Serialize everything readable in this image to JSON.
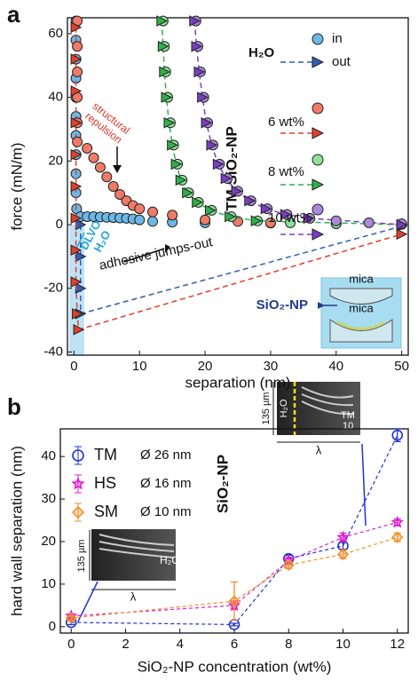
{
  "chart_data": [
    {
      "type": "scatter",
      "panel_label": "a",
      "xlabel": "separation (nm)",
      "ylabel": "force (mN/m)",
      "xlim": [
        -1,
        51
      ],
      "ylim": [
        -41,
        65
      ],
      "xticks": [
        0,
        10,
        20,
        30,
        40,
        50
      ],
      "yticks": [
        -40,
        -20,
        0,
        20,
        40,
        60
      ],
      "legend_in": "in",
      "legend_out": "out",
      "legend_group": "TM SiO₂-NP",
      "annotations": {
        "structural_repulsion": [
          "structural",
          "repulsion"
        ],
        "dlvo": [
          "DLVO",
          "H₂O"
        ],
        "jumps": "adhesive jumps-out",
        "particle": "SiO₂-NP",
        "mica": "mica"
      },
      "series": [
        {
          "name": "H₂O",
          "color": "#6cb8e6",
          "out_color": "#2f5fb5",
          "in_x": [
            0.3,
            0.3,
            0.3,
            0.3,
            0.3,
            0.3,
            0.3,
            0.3,
            0.3,
            0.3,
            0.4,
            1,
            2,
            3,
            4,
            5,
            6,
            7,
            8,
            9,
            10,
            12,
            15,
            20,
            30,
            40,
            50
          ],
          "in_y": [
            64,
            58,
            52,
            46,
            40,
            34,
            28,
            22,
            16,
            10,
            5,
            2.5,
            2.5,
            2.5,
            2.4,
            2.3,
            2.2,
            2.1,
            2,
            1.8,
            1.5,
            1,
            0.8,
            0.6,
            0.5,
            0.3,
            0.2
          ],
          "out_x": [
            1,
            1,
            1,
            1,
            50
          ],
          "out_y": [
            0,
            -10,
            -20,
            -28,
            -0.5
          ]
        },
        {
          "name": "6 wt%",
          "color": "#f07a68",
          "out_color": "#e0402e",
          "in_x": [
            0.5,
            0.5,
            0.5,
            0.5,
            0.5,
            0.5,
            2,
            3,
            4,
            5,
            6,
            7,
            8,
            9,
            10,
            12,
            15,
            20,
            25,
            30,
            40,
            50
          ],
          "in_y": [
            64,
            56,
            48,
            40,
            32,
            26,
            24,
            21,
            18,
            15,
            12,
            9.5,
            7.5,
            6,
            5,
            4,
            3,
            1.5,
            1,
            0.6,
            0.3,
            0.1
          ],
          "out_x": [
            0.3,
            0.3,
            0.3,
            0.3,
            0.3,
            0.3,
            0.3,
            0.3,
            0.3,
            0.5,
            0.7,
            50
          ],
          "out_y": [
            62,
            52,
            42,
            32,
            22,
            12,
            2,
            -8,
            -18,
            -28,
            -33,
            -3
          ]
        },
        {
          "name": "8 wt%",
          "color": "#8fe09a",
          "out_color": "#2fb04a",
          "in_x": [
            13.6,
            13.8,
            14,
            14.3,
            14.7,
            15.2,
            15.8,
            16.5,
            17.5,
            19,
            21,
            24,
            28,
            33,
            40,
            50
          ],
          "in_y": [
            64,
            56,
            48,
            40,
            32,
            25,
            19,
            14,
            10,
            7,
            4.5,
            2.5,
            1.2,
            0.6,
            0.3,
            0.1
          ],
          "out_x": [
            13.4,
            13.6,
            13.8,
            14.1,
            14.5,
            15,
            15.6,
            16.3,
            17.3,
            18.8,
            20.8,
            23.8,
            27.8,
            50
          ],
          "out_y": [
            64,
            56,
            48,
            40,
            32,
            25,
            19,
            14,
            10,
            7,
            4.5,
            2.5,
            1.2,
            0
          ]
        },
        {
          "name": "10 wt%",
          "color": "#a98bd9",
          "out_color": "#7a3fc0",
          "in_x": [
            18.6,
            18.9,
            19.3,
            19.8,
            20.4,
            21.2,
            22.2,
            23.4,
            25,
            27,
            29.5,
            32.5,
            36,
            40,
            45,
            50
          ],
          "in_y": [
            64,
            56,
            48,
            40,
            32,
            25,
            19,
            14.5,
            10.5,
            7.5,
            5,
            3.2,
            2,
            1.2,
            0.6,
            0.3
          ],
          "out_x": [
            18.4,
            18.7,
            19.1,
            19.6,
            20.2,
            21,
            22,
            23.2,
            24.8,
            26.8,
            29.3,
            32.3,
            35.8,
            50
          ],
          "out_y": [
            64,
            56,
            48,
            40,
            32,
            25,
            19,
            14.5,
            10.5,
            7.5,
            5,
            3.2,
            2,
            0
          ]
        }
      ]
    },
    {
      "type": "line",
      "panel_label": "b",
      "xlabel": "SiO₂-NP concentration (wt%)",
      "ylabel": "hard wall separation (nm)",
      "xlim": [
        -0.4,
        12.4
      ],
      "ylim": [
        -1.5,
        46.5
      ],
      "xticks": [
        0,
        2,
        4,
        6,
        8,
        10,
        12
      ],
      "yticks": [
        0,
        10,
        20,
        30,
        40
      ],
      "legend_title": "SiO₂-NP",
      "x": [
        0,
        6,
        8,
        10,
        12
      ],
      "inset_labels": {
        "scale": "135 µm",
        "wavelength": "λ",
        "water": "H₂O",
        "tm": "TM",
        "tm_conc": "10"
      },
      "series": [
        {
          "name": "TM",
          "size_label": "Ø 26 nm",
          "color": "#2233cc",
          "marker": "circle",
          "values": [
            1,
            0.5,
            16,
            19,
            45
          ],
          "errors": [
            0.5,
            0.3,
            0.8,
            0.8,
            1.5
          ]
        },
        {
          "name": "HS",
          "size_label": "Ø 16 nm",
          "color": "#e020d0",
          "marker": "star",
          "values": [
            2.5,
            5,
            15.5,
            21,
            24.5
          ],
          "errors": [
            0.5,
            1,
            0.8,
            1,
            0.8
          ]
        },
        {
          "name": "SM",
          "size_label": "Ø 10 nm",
          "color": "#f0902a",
          "marker": "diamond",
          "values": [
            2,
            6,
            14.5,
            17,
            21
          ],
          "errors": [
            0.5,
            4.5,
            0.8,
            1,
            1
          ]
        }
      ]
    }
  ]
}
